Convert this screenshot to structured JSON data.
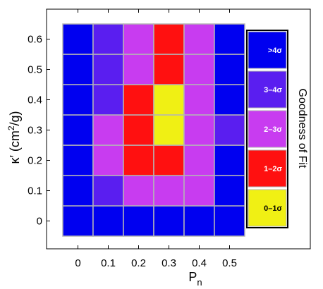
{
  "chart_data": {
    "type": "heatmap",
    "xlabel": "P",
    "xlabel_subscript": "n",
    "ylabel_prefix": "κ′ (cm",
    "ylabel_sup": "2",
    "ylabel_suffix": "/g)",
    "x": [
      0,
      0.1,
      0.2,
      0.3,
      0.4,
      0.5
    ],
    "x_tick_labels": [
      "0",
      "0.1",
      "0.2",
      "0.3",
      "0.4",
      "0.5"
    ],
    "y": [
      0,
      0.1,
      0.2,
      0.3,
      0.4,
      0.5,
      0.6
    ],
    "y_tick_labels": [
      "0",
      "0.1",
      "0.2",
      "0.3",
      "0.4",
      "0.5",
      "0.6"
    ],
    "xlim": [
      -0.05,
      0.55
    ],
    "ylim": [
      -0.05,
      0.65
    ],
    "goodness_levels": [
      [
        4,
        4,
        4,
        4,
        4,
        4
      ],
      [
        4,
        3,
        2,
        2,
        2,
        4
      ],
      [
        4,
        2,
        1,
        1,
        2,
        4
      ],
      [
        4,
        2,
        1,
        0,
        2,
        3
      ],
      [
        4,
        3,
        1,
        0,
        2,
        4
      ],
      [
        4,
        3,
        2,
        1,
        2,
        4
      ],
      [
        4,
        3,
        2,
        1,
        2,
        4
      ]
    ],
    "colorbar": {
      "title": "Goodness of Fit",
      "levels": [
        {
          "label": ">4σ",
          "color": "#0000f0"
        },
        {
          "label": "3–4σ",
          "color": "#5a1ef0"
        },
        {
          "label": "2–3σ",
          "color": "#c83cf0"
        },
        {
          "label": "1–2σ",
          "color": "#ff1010"
        },
        {
          "label": "0–1σ",
          "color": "#f0f014"
        }
      ]
    }
  }
}
